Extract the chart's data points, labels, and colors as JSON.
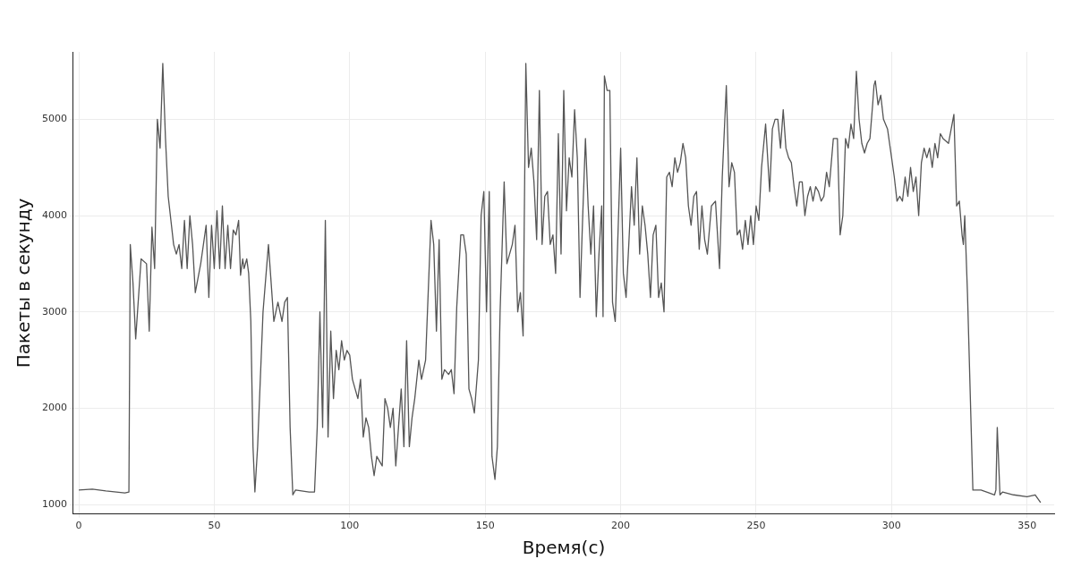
{
  "chart_data": {
    "type": "line",
    "xlabel": "Время(с)",
    "ylabel": "Пакеты в секунду",
    "xlim": [
      -2,
      360
    ],
    "ylim": [
      900,
      5700
    ],
    "xticks": [
      0,
      50,
      100,
      150,
      200,
      250,
      300,
      350
    ],
    "yticks": [
      1000,
      2000,
      3000,
      4000,
      5000
    ],
    "grid": true,
    "legend": false,
    "marker": "none",
    "line_style": "solid",
    "series": [
      {
        "color": "#555555",
        "x": [
          0,
          5,
          10,
          17,
          18.5,
          19,
          20,
          21,
          23,
          25,
          26,
          27,
          28,
          29,
          30,
          31,
          32,
          33,
          35,
          36,
          37,
          38,
          39,
          40,
          41,
          42,
          43,
          45,
          47,
          48,
          49,
          50,
          51,
          52,
          53,
          54,
          55,
          56,
          57,
          58,
          59,
          59.7,
          60.5,
          61,
          62,
          62.7,
          63.5,
          64.3,
          65,
          66,
          68,
          70,
          71,
          72,
          73.5,
          75,
          76,
          77,
          78,
          79,
          80,
          85,
          87,
          88,
          89,
          90,
          91,
          92,
          93,
          94,
          95,
          96,
          97,
          98,
          99,
          100,
          101,
          103,
          104,
          105,
          106,
          107,
          108,
          109,
          110,
          111,
          112,
          113,
          114,
          115,
          116,
          117,
          118,
          119,
          120,
          121,
          122,
          123,
          124,
          125.5,
          126.5,
          128,
          130,
          131,
          132,
          133,
          134,
          135,
          136.5,
          137.5,
          138.5,
          139.5,
          141,
          142,
          143,
          144,
          145,
          146,
          147.5,
          148.5,
          149.5,
          150.5,
          151.5,
          152.5,
          153.6,
          154.5,
          155.5,
          157,
          158,
          159,
          160,
          161,
          162,
          163,
          164,
          165,
          166,
          167,
          168,
          169,
          170,
          171,
          172,
          173,
          174,
          175,
          176,
          177,
          178,
          179,
          180,
          181,
          182,
          183,
          184,
          185,
          186,
          187,
          188,
          189,
          190,
          191,
          192,
          193,
          193.5,
          194,
          195,
          196,
          197,
          198,
          200,
          201,
          202,
          203,
          204,
          205,
          206,
          207,
          208,
          209,
          210,
          211,
          212,
          213,
          214,
          215,
          216,
          217,
          218,
          219,
          220,
          221,
          222,
          223,
          224,
          225,
          226,
          227,
          228,
          229,
          230,
          231,
          232,
          233.5,
          235,
          236.5,
          237.5,
          239,
          240,
          241,
          242,
          243,
          244,
          245,
          246,
          247,
          248,
          249,
          250,
          251,
          252,
          253.5,
          255,
          256,
          257,
          258,
          259,
          260,
          261,
          262,
          263,
          264,
          265,
          266,
          267,
          268,
          269,
          270,
          271,
          272,
          273,
          274,
          275,
          276,
          277,
          278.5,
          280,
          281,
          282,
          283,
          284,
          285,
          286,
          287,
          288,
          289,
          290,
          291,
          292,
          293,
          293.5,
          294,
          295,
          296,
          297,
          298.5,
          300,
          301,
          302,
          303,
          304,
          305,
          306,
          307,
          308,
          309,
          310,
          311,
          312,
          313,
          314,
          315,
          316,
          317,
          318,
          319,
          321,
          323,
          324,
          325,
          326,
          326.5,
          327,
          328,
          330,
          333,
          336,
          338,
          338.5,
          339,
          340,
          341,
          345,
          350,
          353,
          355
        ],
        "values": [
          1150,
          1160,
          1140,
          1120,
          1130,
          3700,
          3300,
          2720,
          3550,
          3500,
          2800,
          3880,
          3450,
          5000,
          4700,
          5580,
          4800,
          4200,
          3700,
          3600,
          3700,
          3450,
          3950,
          3450,
          4000,
          3700,
          3200,
          3500,
          3900,
          3150,
          3900,
          3450,
          4050,
          3450,
          4100,
          3450,
          3900,
          3450,
          3850,
          3800,
          3950,
          3380,
          3550,
          3450,
          3550,
          3400,
          2900,
          1600,
          1130,
          1600,
          3000,
          3700,
          3300,
          2900,
          3100,
          2900,
          3100,
          3150,
          1800,
          1100,
          1150,
          1130,
          1130,
          1800,
          3000,
          1800,
          3950,
          1700,
          2800,
          2100,
          2600,
          2400,
          2700,
          2500,
          2600,
          2550,
          2300,
          2100,
          2300,
          1700,
          1900,
          1800,
          1500,
          1300,
          1500,
          1450,
          1400,
          2100,
          2000,
          1800,
          2000,
          1400,
          1800,
          2200,
          1600,
          2700,
          1600,
          1900,
          2100,
          2500,
          2300,
          2500,
          3950,
          3700,
          2800,
          3750,
          2300,
          2400,
          2350,
          2400,
          2150,
          3050,
          3800,
          3800,
          3600,
          2200,
          2100,
          1950,
          2500,
          4000,
          4250,
          3000,
          4250,
          1500,
          1260,
          1600,
          3000,
          4350,
          3500,
          3600,
          3700,
          3900,
          3000,
          3200,
          2750,
          5580,
          4500,
          4700,
          4350,
          3750,
          5300,
          3700,
          4200,
          4250,
          3700,
          3800,
          3400,
          4850,
          3600,
          5300,
          4050,
          4600,
          4400,
          5100,
          4600,
          3150,
          4000,
          4800,
          4100,
          3600,
          4100,
          2950,
          3600,
          4100,
          2950,
          5450,
          5300,
          5300,
          3100,
          2900,
          4700,
          3400,
          3150,
          3700,
          4300,
          3900,
          4600,
          3600,
          4100,
          3900,
          3600,
          3150,
          3800,
          3900,
          3150,
          3300,
          3000,
          4400,
          4450,
          4300,
          4600,
          4450,
          4550,
          4750,
          4600,
          4100,
          3900,
          4200,
          4250,
          3650,
          4100,
          3750,
          3600,
          4100,
          4150,
          3450,
          4400,
          5350,
          4300,
          4550,
          4450,
          3800,
          3850,
          3650,
          3950,
          3700,
          4000,
          3700,
          4100,
          3950,
          4500,
          4950,
          4250,
          4900,
          5000,
          5000,
          4700,
          5100,
          4700,
          4600,
          4550,
          4300,
          4100,
          4350,
          4350,
          4000,
          4200,
          4300,
          4150,
          4300,
          4250,
          4150,
          4200,
          4450,
          4300,
          4800,
          4800,
          3800,
          4000,
          4800,
          4700,
          4950,
          4800,
          5500,
          5000,
          4750,
          4650,
          4750,
          4800,
          5150,
          5350,
          5400,
          5150,
          5250,
          5000,
          4900,
          4600,
          4400,
          4150,
          4200,
          4150,
          4400,
          4200,
          4500,
          4250,
          4400,
          4000,
          4550,
          4700,
          4600,
          4700,
          4500,
          4750,
          4600,
          4850,
          4800,
          4750,
          5050,
          4100,
          4150,
          3800,
          3700,
          4000,
          3200,
          1150,
          1150,
          1120,
          1100,
          1150,
          1800,
          1100,
          1130,
          1100,
          1080,
          1100,
          1020
        ]
      }
    ]
  }
}
